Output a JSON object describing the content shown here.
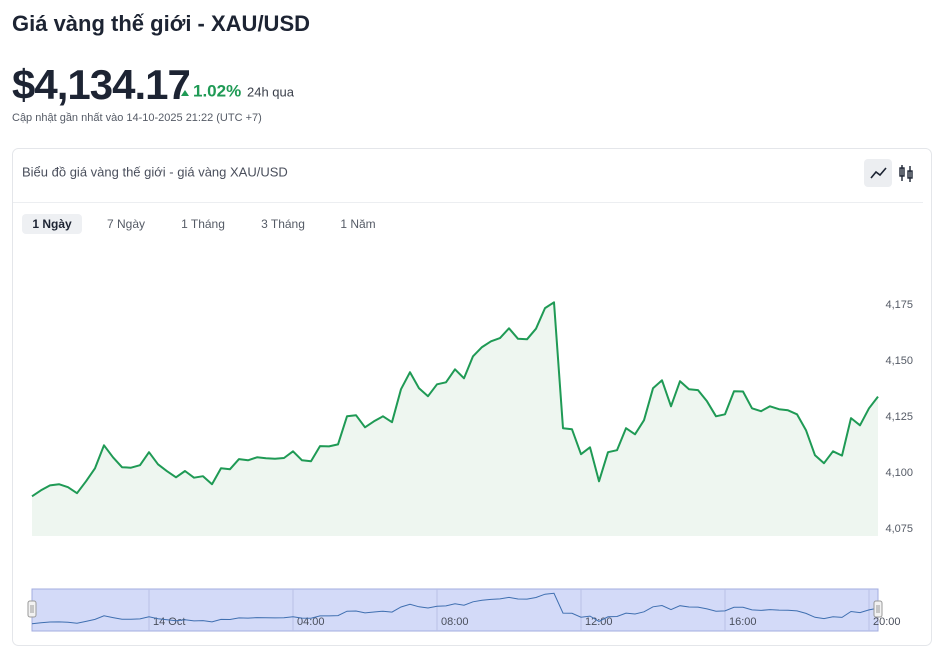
{
  "header": {
    "title": "Giá vàng thế giới - XAU/USD",
    "price": "$4,134.17",
    "change": "1.02%",
    "change_period": "24h qua",
    "updated": "Cập nhật gần nhất vào 14-10-2025 21:22 (UTC +7)"
  },
  "tabs": [
    "1 Ngày",
    "7 Ngày",
    "1 Tháng",
    "3 Tháng",
    "1 Năm"
  ],
  "chart_data": {
    "type": "area",
    "title": "Biểu đồ giá vàng thế giới - giá vàng XAU/USD",
    "color": "#1f9a55",
    "fill": "#eef6f0",
    "x": [
      -3.25,
      -3,
      -2.75,
      -2.5,
      -2.25,
      -2,
      -1.75,
      -1.5,
      -1.25,
      -1,
      -0.75,
      -0.5,
      -0.25,
      0,
      0.25,
      0.5,
      0.75,
      1,
      1.25,
      1.5,
      1.75,
      2,
      2.25,
      2.5,
      2.75,
      3,
      3.25,
      3.5,
      3.75,
      4,
      4.25,
      4.5,
      4.75,
      5,
      5.25,
      5.5,
      5.75,
      6,
      6.25,
      6.5,
      6.75,
      7,
      7.25,
      7.5,
      7.75,
      8,
      8.25,
      8.5,
      8.75,
      9,
      9.25,
      9.5,
      9.75,
      10,
      10.25,
      10.5,
      10.75,
      11,
      11.25,
      11.5,
      11.75,
      12,
      12.25,
      12.5,
      12.75,
      13,
      13.25,
      13.5,
      13.75,
      14,
      14.25,
      14.5,
      14.75,
      15,
      15.25,
      15.5,
      15.75,
      16,
      16.25,
      16.5,
      16.75,
      17,
      17.25,
      17.5,
      17.75,
      18,
      18.25,
      18.5,
      18.75,
      19,
      19.25,
      19.5,
      19.75,
      20,
      20.25
    ],
    "values": [
      4089.7,
      4092.4,
      4094.6,
      4095.1,
      4093.8,
      4091.1,
      4096.4,
      4102.2,
      4112.5,
      4107.1,
      4102.7,
      4102.5,
      4103.6,
      4109.4,
      4104,
      4100.9,
      4098.2,
      4101,
      4098,
      4098.7,
      4095.1,
      4102.2,
      4101.8,
      4106.3,
      4105.8,
      4107.1,
      4106.7,
      4106.5,
      4106.8,
      4109.8,
      4105.8,
      4105.4,
      4112.1,
      4112,
      4112.9,
      4125.4,
      4125.9,
      4120.5,
      4123.2,
      4125.4,
      4122.8,
      4137.5,
      4145.1,
      4137.9,
      4134.4,
      4139.7,
      4140.6,
      4146.4,
      4142.4,
      4152.2,
      4156.3,
      4158.9,
      4160.3,
      4164.7,
      4160,
      4159.8,
      4164.5,
      4173.7,
      4176.3,
      4120.1,
      4119.6,
      4108.5,
      4111.6,
      4096.4,
      4109.4,
      4110.3,
      4120.1,
      4117.4,
      4123.7,
      4137.9,
      4141.5,
      4129.9,
      4141.1,
      4137.5,
      4137.1,
      4132.1,
      4125.4,
      4126.3,
      4136.6,
      4136.5,
      4129,
      4127.7,
      4129.9,
      4128.6,
      4128.1,
      4126.3,
      4119.2,
      4108,
      4104.5,
      4109.8,
      4107.9,
      4124.6,
      4121.4,
      4129,
      4134.2
    ],
    "xlim": [
      -3.25,
      20.25
    ],
    "xticks": [
      {
        "value": 0,
        "label": "14 Oct"
      },
      {
        "value": 4,
        "label": "04:00"
      },
      {
        "value": 8,
        "label": "08:00"
      },
      {
        "value": 12,
        "label": "12:00"
      },
      {
        "value": 16,
        "label": "16:00"
      },
      {
        "value": 20,
        "label": "20:00"
      }
    ],
    "ylim": [
      4072,
      4180
    ],
    "yticks": [
      {
        "value": 4075,
        "label": "4,075"
      },
      {
        "value": 4100,
        "label": "4,100"
      },
      {
        "value": 4125,
        "label": "4,125"
      },
      {
        "value": 4150,
        "label": "4,150"
      },
      {
        "value": 4175,
        "label": "4,175"
      }
    ],
    "grid": false
  }
}
